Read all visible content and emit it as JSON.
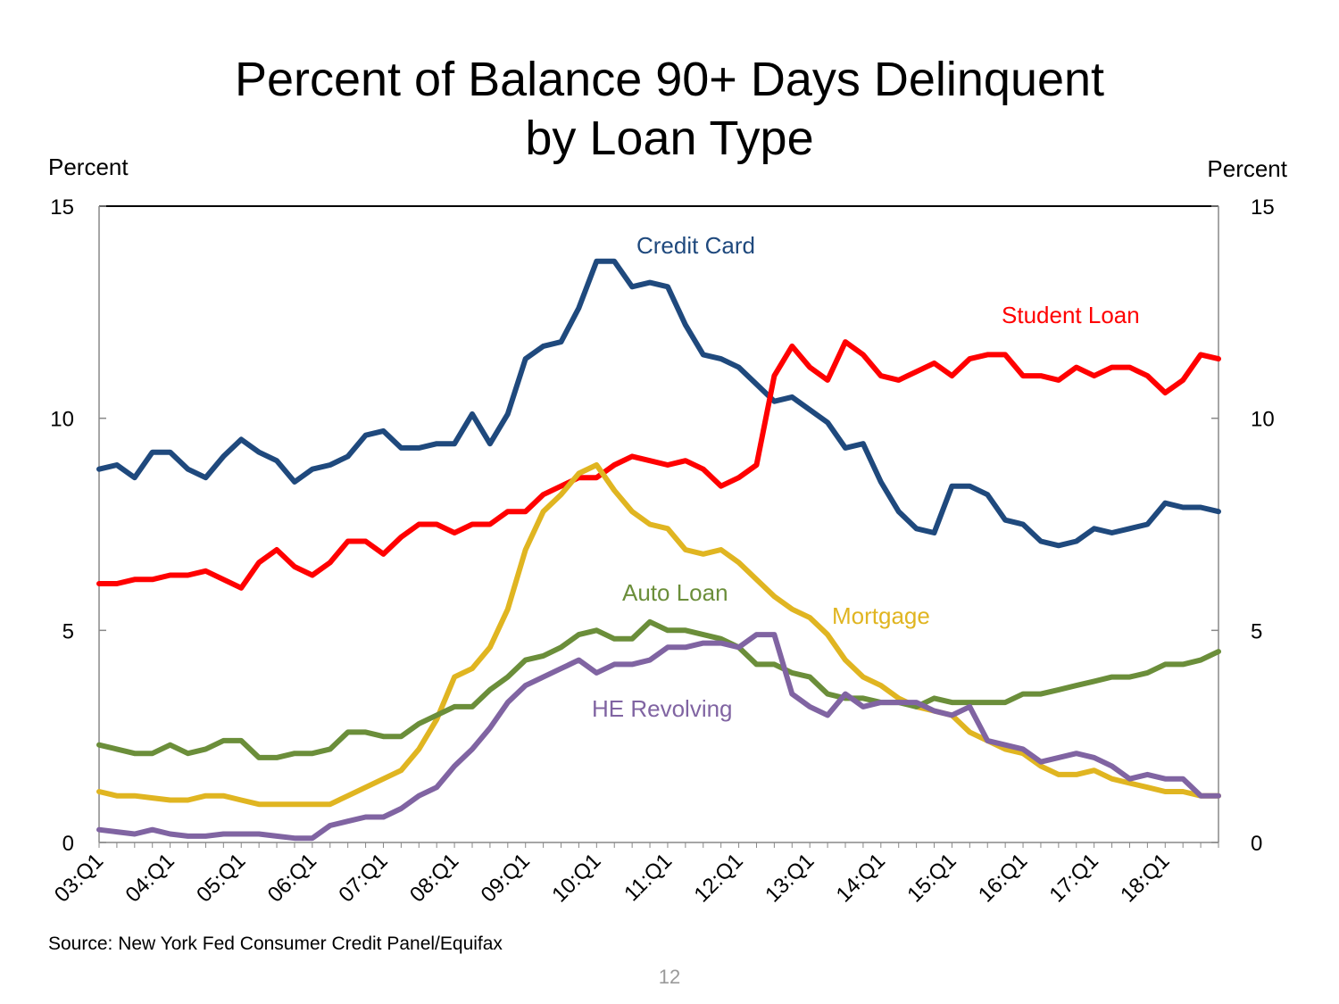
{
  "page": {
    "title_line1": "Percent of Balance 90+ Days Delinquent",
    "title_line2": "by Loan Type",
    "left_unit": "Percent",
    "right_unit": "Percent",
    "source": "Source: New York Fed Consumer Credit Panel/Equifax",
    "page_number": "12"
  },
  "chart_data": {
    "type": "line",
    "title": "Percent of Balance 90+ Days Delinquent by Loan Type",
    "ylabel_left": "Percent",
    "ylabel_right": "Percent",
    "ylim": [
      0,
      15
    ],
    "yticks": [
      0,
      5,
      10,
      15
    ],
    "grid": false,
    "x_start": "03:Q1",
    "x_tick_labels": [
      "03:Q1",
      "04:Q1",
      "05:Q1",
      "06:Q1",
      "07:Q1",
      "08:Q1",
      "09:Q1",
      "10:Q1",
      "11:Q1",
      "12:Q1",
      "13:Q1",
      "14:Q1",
      "15:Q1",
      "16:Q1",
      "17:Q1",
      "18:Q1"
    ],
    "series": [
      {
        "name": "Credit Card",
        "color": "#1f497d",
        "values": [
          8.8,
          8.9,
          8.6,
          9.2,
          9.2,
          8.8,
          8.6,
          9.1,
          9.5,
          9.2,
          9.0,
          8.5,
          8.8,
          8.9,
          9.1,
          9.6,
          9.7,
          9.3,
          9.3,
          9.4,
          9.4,
          10.1,
          9.4,
          10.1,
          11.4,
          11.7,
          11.8,
          12.6,
          13.7,
          13.7,
          13.1,
          13.2,
          13.1,
          12.2,
          11.5,
          11.4,
          11.2,
          10.8,
          10.4,
          10.5,
          10.2,
          9.9,
          9.3,
          9.4,
          8.5,
          7.8,
          7.4,
          7.3,
          8.4,
          8.4,
          8.2,
          7.6,
          7.5,
          7.1,
          7.0,
          7.1,
          7.4,
          7.3,
          7.4,
          7.5,
          8.0,
          7.9,
          7.9,
          7.8
        ]
      },
      {
        "name": "Student Loan",
        "color": "#ff0000",
        "values": [
          6.1,
          6.1,
          6.2,
          6.2,
          6.3,
          6.3,
          6.4,
          6.2,
          6.0,
          6.6,
          6.9,
          6.5,
          6.3,
          6.6,
          7.1,
          7.1,
          6.8,
          7.2,
          7.5,
          7.5,
          7.3,
          7.5,
          7.5,
          7.8,
          7.8,
          8.2,
          8.4,
          8.6,
          8.6,
          8.9,
          9.1,
          9.0,
          8.9,
          9.0,
          8.8,
          8.4,
          8.6,
          8.9,
          11.0,
          11.7,
          11.2,
          10.9,
          11.8,
          11.5,
          11.0,
          10.9,
          11.1,
          11.3,
          11.0,
          11.4,
          11.5,
          11.5,
          11.0,
          11.0,
          10.9,
          11.2,
          11.0,
          11.2,
          11.2,
          11.0,
          10.6,
          10.9,
          11.5,
          11.4
        ]
      },
      {
        "name": "Mortgage",
        "color": "#e0b521",
        "values": [
          1.2,
          1.1,
          1.1,
          1.05,
          1.0,
          1.0,
          1.1,
          1.1,
          1.0,
          0.9,
          0.9,
          0.9,
          0.9,
          0.9,
          1.1,
          1.3,
          1.5,
          1.7,
          2.2,
          2.9,
          3.9,
          4.1,
          4.6,
          5.5,
          6.9,
          7.8,
          8.2,
          8.7,
          8.9,
          8.3,
          7.8,
          7.5,
          7.4,
          6.9,
          6.8,
          6.9,
          6.6,
          6.2,
          5.8,
          5.5,
          5.3,
          4.9,
          4.3,
          3.9,
          3.7,
          3.4,
          3.2,
          3.1,
          3.0,
          2.6,
          2.4,
          2.2,
          2.1,
          1.8,
          1.6,
          1.6,
          1.7,
          1.5,
          1.4,
          1.3,
          1.2,
          1.2,
          1.1,
          1.1
        ]
      },
      {
        "name": "Auto Loan",
        "color": "#6b8e3a",
        "values": [
          2.3,
          2.2,
          2.1,
          2.1,
          2.3,
          2.1,
          2.2,
          2.4,
          2.4,
          2.0,
          2.0,
          2.1,
          2.1,
          2.2,
          2.6,
          2.6,
          2.5,
          2.5,
          2.8,
          3.0,
          3.2,
          3.2,
          3.6,
          3.9,
          4.3,
          4.4,
          4.6,
          4.9,
          5.0,
          4.8,
          4.8,
          5.2,
          5.0,
          5.0,
          4.9,
          4.8,
          4.6,
          4.2,
          4.2,
          4.0,
          3.9,
          3.5,
          3.4,
          3.4,
          3.3,
          3.3,
          3.2,
          3.4,
          3.3,
          3.3,
          3.3,
          3.3,
          3.5,
          3.5,
          3.6,
          3.7,
          3.8,
          3.9,
          3.9,
          4.0,
          4.2,
          4.2,
          4.3,
          4.5
        ]
      },
      {
        "name": "HE Revolving",
        "color": "#8064a2",
        "values": [
          0.3,
          0.25,
          0.2,
          0.3,
          0.2,
          0.15,
          0.15,
          0.2,
          0.2,
          0.2,
          0.15,
          0.1,
          0.1,
          0.4,
          0.5,
          0.6,
          0.6,
          0.8,
          1.1,
          1.3,
          1.8,
          2.2,
          2.7,
          3.3,
          3.7,
          3.9,
          4.1,
          4.3,
          4.0,
          4.2,
          4.2,
          4.3,
          4.6,
          4.6,
          4.7,
          4.7,
          4.6,
          4.9,
          4.9,
          3.5,
          3.2,
          3.0,
          3.5,
          3.2,
          3.3,
          3.3,
          3.3,
          3.1,
          3.0,
          3.2,
          2.4,
          2.3,
          2.2,
          1.9,
          2.0,
          2.1,
          2.0,
          1.8,
          1.5,
          1.6,
          1.5,
          1.5,
          1.1,
          1.1
        ]
      }
    ],
    "annotations": [
      {
        "text": "Credit Card",
        "color": "#1f497d"
      },
      {
        "text": "Student Loan",
        "color": "#ff0000"
      },
      {
        "text": "Auto Loan",
        "color": "#6b8e3a"
      },
      {
        "text": "Mortgage",
        "color": "#e0b521"
      },
      {
        "text": "HE Revolving",
        "color": "#8064a2"
      }
    ]
  }
}
